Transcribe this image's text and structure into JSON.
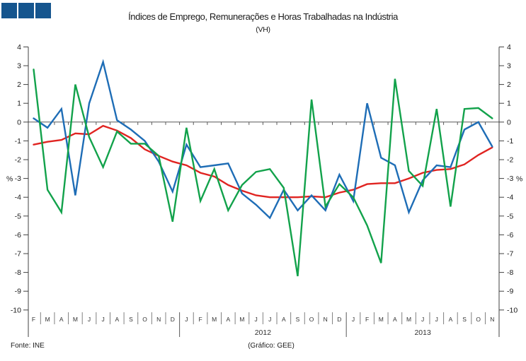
{
  "header": {
    "title": "Índices de Emprego, Remunerações e Horas Trabalhadas na Indústria",
    "subtitle": "(VH)",
    "logo_color": "#15558E",
    "logo_square_count": 3
  },
  "footer": {
    "source": "Fonte: INE",
    "credit": "(Gráfico: GEE)"
  },
  "chart_data": {
    "type": "line",
    "title": "Índices de Emprego, Remunerações e Horas Trabalhadas na Indústria (VH)",
    "ylabel_left": "%",
    "ylabel_right": "%",
    "ylim": [
      -10,
      4
    ],
    "y_tick_step": 1,
    "grid": "zero-line-only",
    "legend_position": "none",
    "categories": [
      "F",
      "M",
      "A",
      "M",
      "J",
      "J",
      "A",
      "S",
      "O",
      "N",
      "D",
      "J",
      "F",
      "M",
      "A",
      "M",
      "J",
      "J",
      "A",
      "S",
      "O",
      "N",
      "D",
      "J",
      "F",
      "M",
      "A",
      "M",
      "J",
      "J",
      "A",
      "S",
      "O",
      "N"
    ],
    "year_labels": [
      {
        "text": "2012",
        "from_index": 11,
        "to_index": 22
      },
      {
        "text": "2013",
        "from_index": 23,
        "to_index": 33
      }
    ],
    "year_separators_after_index": [
      10,
      22
    ],
    "series": [
      {
        "name": "serie-vermelha",
        "color": "#E02421",
        "values": [
          -1.2,
          -1.05,
          -0.95,
          -0.6,
          -0.65,
          -0.2,
          -0.45,
          -0.85,
          -1.45,
          -1.8,
          -2.1,
          -2.3,
          -2.7,
          -2.9,
          -3.35,
          -3.65,
          -3.9,
          -4.0,
          -4.0,
          -4.0,
          -3.95,
          -4.0,
          -3.75,
          -3.6,
          -3.3,
          -3.25,
          -3.25,
          -3.0,
          -2.7,
          -2.55,
          -2.5,
          -2.25,
          -1.75,
          -1.35
        ]
      },
      {
        "name": "serie-azul",
        "color": "#1E6DB6",
        "values": [
          0.2,
          -0.3,
          0.7,
          -3.9,
          1.0,
          3.2,
          0.1,
          -0.4,
          -1.0,
          -2.1,
          -3.7,
          -1.2,
          -2.4,
          -2.3,
          -2.2,
          -3.8,
          -4.4,
          -5.1,
          -3.6,
          -4.7,
          -3.9,
          -4.7,
          -2.8,
          -4.2,
          1.0,
          -1.9,
          -2.3,
          -4.8,
          -3.1,
          -2.3,
          -2.4,
          -0.4,
          0.0,
          -1.3
        ]
      },
      {
        "name": "serie-verde",
        "color": "#12A24B",
        "values": [
          2.8,
          -3.6,
          -4.8,
          2.0,
          -0.8,
          -2.4,
          -0.5,
          -1.15,
          -1.15,
          -1.8,
          -5.3,
          -0.3,
          -4.2,
          -2.5,
          -4.7,
          -3.35,
          -2.65,
          -2.5,
          -3.5,
          -8.2,
          1.2,
          -4.5,
          -3.3,
          -4.0,
          -5.5,
          -7.5,
          2.3,
          -2.6,
          -3.4,
          0.7,
          -4.5,
          0.7,
          0.75,
          0.2
        ]
      }
    ]
  }
}
